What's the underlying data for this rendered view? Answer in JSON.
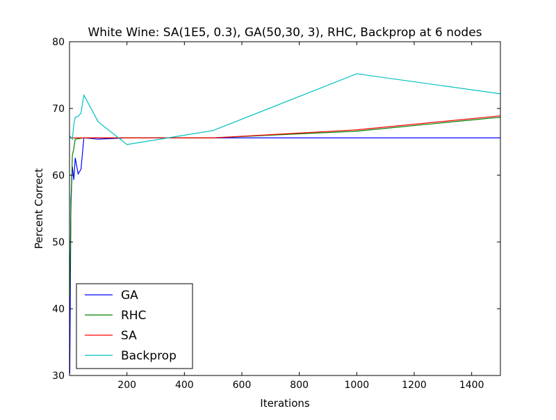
{
  "chart_data": {
    "type": "line",
    "title": "White Wine: SA(1E5, 0.3), GA(50,30, 3), RHC, Backprop at 6 nodes",
    "xlabel": "Iterations",
    "ylabel": "Percent Correct",
    "xlim": [
      0,
      1500
    ],
    "ylim": [
      30,
      80
    ],
    "xticks": [
      200,
      400,
      600,
      800,
      1000,
      1200,
      1400
    ],
    "yticks": [
      30,
      40,
      50,
      60,
      70,
      80
    ],
    "grid": false,
    "legend_position": "lower-left",
    "series": [
      {
        "name": "GA",
        "color": "#0000ff",
        "points": [
          [
            1,
            30.3
          ],
          [
            5,
            56.4
          ],
          [
            10,
            61.3
          ],
          [
            15,
            59.3
          ],
          [
            20,
            62.6
          ],
          [
            30,
            60.2
          ],
          [
            40,
            60.9
          ],
          [
            50,
            65.6
          ],
          [
            100,
            65.4
          ],
          [
            200,
            65.6
          ],
          [
            500,
            65.6
          ],
          [
            1000,
            65.6
          ],
          [
            1500,
            65.6
          ]
        ]
      },
      {
        "name": "RHC",
        "color": "#008000",
        "points": [
          [
            1,
            42.0
          ],
          [
            5,
            55.0
          ],
          [
            10,
            63.0
          ],
          [
            15,
            64.0
          ],
          [
            20,
            65.4
          ],
          [
            50,
            65.6
          ],
          [
            100,
            65.6
          ],
          [
            200,
            65.6
          ],
          [
            500,
            65.6
          ],
          [
            1000,
            66.6
          ],
          [
            1500,
            68.7
          ]
        ]
      },
      {
        "name": "SA",
        "color": "#ff0000",
        "points": [
          [
            1,
            65.6
          ],
          [
            50,
            65.6
          ],
          [
            100,
            65.6
          ],
          [
            200,
            65.6
          ],
          [
            500,
            65.6
          ],
          [
            1000,
            66.8
          ],
          [
            1500,
            68.9
          ]
        ]
      },
      {
        "name": "Backprop",
        "color": "#00bfbf",
        "points": [
          [
            1,
            65.9
          ],
          [
            10,
            65.4
          ],
          [
            15,
            67.6
          ],
          [
            20,
            68.7
          ],
          [
            30,
            68.8
          ],
          [
            40,
            69.3
          ],
          [
            50,
            72.0
          ],
          [
            100,
            68.0
          ],
          [
            200,
            64.6
          ],
          [
            500,
            66.7
          ],
          [
            1000,
            75.2
          ],
          [
            1500,
            72.2
          ]
        ]
      }
    ]
  }
}
